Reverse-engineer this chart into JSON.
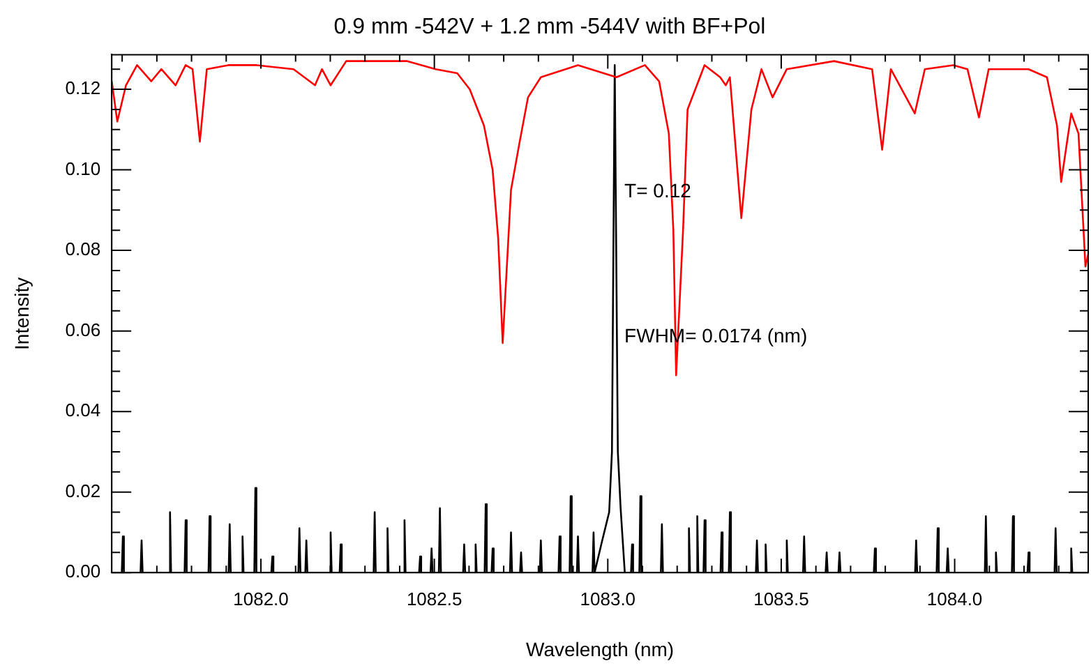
{
  "chart_data": {
    "type": "line",
    "title": "0.9 mm -542V + 1.2 mm -544V with BF+Pol",
    "xlabel": "Wavelength (nm)",
    "ylabel": "Intensity",
    "marker": "none",
    "xlim": [
      1081.57,
      1084.385
    ],
    "ylim": [
      0,
      0.1286
    ],
    "xticks": [
      {
        "value": 1082,
        "label": "1082.0"
      },
      {
        "value": 1082.5,
        "label": "1082.5"
      },
      {
        "value": 1083,
        "label": "1083.0"
      },
      {
        "value": 1083.5,
        "label": "1083.5"
      },
      {
        "value": 1084,
        "label": "1084.0"
      }
    ],
    "yticks": [
      {
        "value": 0,
        "label": "0.00"
      },
      {
        "value": 0.02,
        "label": "0.02"
      },
      {
        "value": 0.04,
        "label": "0.04"
      },
      {
        "value": 0.06,
        "label": "0.06"
      },
      {
        "value": 0.08,
        "label": "0.08"
      },
      {
        "value": 0.1,
        "label": "0.10"
      },
      {
        "value": 0.12,
        "label": "0.12"
      }
    ],
    "annotations": [
      "T= 0.12",
      "FWHM= 0.0174 (nm)"
    ],
    "series": [
      {
        "color": "#ff0000",
        "x": [
          1081.57,
          1081.586,
          1081.611,
          1081.643,
          1081.684,
          1081.713,
          1081.754,
          1081.783,
          1081.803,
          1081.824,
          1081.844,
          1081.906,
          1081.988,
          1082.094,
          1082.156,
          1082.176,
          1082.201,
          1082.246,
          1082.422,
          1082.504,
          1082.566,
          1082.602,
          1082.643,
          1082.668,
          1082.684,
          1082.697,
          1082.721,
          1082.746,
          1082.77,
          1082.807,
          1082.914,
          1083.025,
          1083.107,
          1083.148,
          1083.176,
          1083.189,
          1083.197,
          1083.217,
          1083.23,
          1083.279,
          1083.324,
          1083.34,
          1083.352,
          1083.385,
          1083.414,
          1083.443,
          1083.475,
          1083.516,
          1083.652,
          1083.762,
          1083.791,
          1083.816,
          1083.885,
          1083.914,
          1083.996,
          1084.037,
          1084.07,
          1084.098,
          1084.213,
          1084.266,
          1084.295,
          1084.307,
          1084.336,
          1084.357,
          1084.377,
          1084.385
        ],
        "values": [
          0.122,
          0.112,
          0.121,
          0.126,
          0.122,
          0.125,
          0.121,
          0.126,
          0.125,
          0.107,
          0.125,
          0.126,
          0.126,
          0.125,
          0.121,
          0.125,
          0.121,
          0.127,
          0.127,
          0.125,
          0.124,
          0.12,
          0.111,
          0.1,
          0.083,
          0.057,
          0.095,
          0.107,
          0.118,
          0.123,
          0.126,
          0.123,
          0.126,
          0.122,
          0.109,
          0.085,
          0.049,
          0.085,
          0.115,
          0.126,
          0.123,
          0.121,
          0.123,
          0.088,
          0.115,
          0.125,
          0.118,
          0.125,
          0.127,
          0.125,
          0.105,
          0.125,
          0.114,
          0.125,
          0.126,
          0.125,
          0.113,
          0.125,
          0.125,
          0.123,
          0.111,
          0.097,
          0.114,
          0.109,
          0.076,
          0.079
        ]
      },
      {
        "color": "#000000",
        "x": [
          1081.57,
          1081.599,
          1081.602,
          1081.605,
          1081.653,
          1081.656,
          1081.659,
          1081.735,
          1081.738,
          1081.741,
          1081.78,
          1081.783,
          1081.786,
          1081.849,
          1081.852,
          1081.855,
          1081.907,
          1081.91,
          1081.913,
          1081.944,
          1081.947,
          1081.95,
          1081.981,
          1081.984,
          1081.987,
          1082.03,
          1082.033,
          1082.036,
          1082.108,
          1082.111,
          1082.114,
          1082.128,
          1082.131,
          1082.134,
          1082.198,
          1082.201,
          1082.204,
          1082.227,
          1082.23,
          1082.233,
          1082.325,
          1082.328,
          1082.331,
          1082.362,
          1082.365,
          1082.368,
          1082.411,
          1082.414,
          1082.417,
          1082.456,
          1082.459,
          1082.462,
          1082.489,
          1082.492,
          1082.495,
          1082.513,
          1082.516,
          1082.519,
          1082.583,
          1082.586,
          1082.589,
          1082.616,
          1082.619,
          1082.622,
          1082.645,
          1082.648,
          1082.651,
          1082.665,
          1082.668,
          1082.671,
          1082.718,
          1082.721,
          1082.724,
          1082.747,
          1082.75,
          1082.753,
          1082.804,
          1082.807,
          1082.81,
          1082.858,
          1082.861,
          1082.864,
          1082.89,
          1082.893,
          1082.896,
          1082.911,
          1082.914,
          1082.917,
          1082.956,
          1082.959,
          1082.962,
          1082.984,
          1083.004,
          1083.012,
          1083.02,
          1083.029,
          1083.037,
          1083.049,
          1083.067,
          1083.07,
          1083.073,
          1083.091,
          1083.094,
          1083.097,
          1083.153,
          1083.156,
          1083.159,
          1083.231,
          1083.234,
          1083.237,
          1083.255,
          1083.258,
          1083.261,
          1083.276,
          1083.279,
          1083.282,
          1083.325,
          1083.328,
          1083.331,
          1083.349,
          1083.352,
          1083.355,
          1083.427,
          1083.43,
          1083.433,
          1083.452,
          1083.455,
          1083.458,
          1083.513,
          1083.516,
          1083.519,
          1083.563,
          1083.566,
          1083.569,
          1083.628,
          1083.631,
          1083.634,
          1083.665,
          1083.668,
          1083.671,
          1083.767,
          1083.77,
          1083.773,
          1083.886,
          1083.889,
          1083.892,
          1083.948,
          1083.951,
          1083.954,
          1083.977,
          1083.98,
          1083.983,
          1084.087,
          1084.09,
          1084.093,
          1084.116,
          1084.119,
          1084.122,
          1084.165,
          1084.168,
          1084.171,
          1084.21,
          1084.213,
          1084.216,
          1084.288,
          1084.291,
          1084.294,
          1084.333,
          1084.336,
          1084.339,
          1084.385
        ],
        "values": [
          0,
          0,
          0.009,
          0,
          0,
          0.008,
          0,
          0,
          0.015,
          0,
          0,
          0.013,
          0,
          0,
          0.014,
          0,
          0,
          0.012,
          0,
          0,
          0.009,
          0,
          0,
          0.021,
          0,
          0,
          0.004,
          0,
          0,
          0.011,
          0,
          0,
          0.008,
          0,
          0,
          0.01,
          0,
          0,
          0.007,
          0,
          0,
          0.015,
          0,
          0,
          0.011,
          0,
          0,
          0.013,
          0,
          0,
          0.004,
          0,
          0,
          0.006,
          0,
          0,
          0.016,
          0,
          0,
          0.007,
          0,
          0,
          0.007,
          0,
          0,
          0.017,
          0,
          0,
          0.006,
          0,
          0,
          0.01,
          0,
          0,
          0.005,
          0,
          0,
          0.008,
          0,
          0,
          0.009,
          0,
          0,
          0.019,
          0,
          0,
          0.009,
          0,
          0,
          0.01,
          0,
          0.008,
          0.015,
          0.03,
          0.126,
          0.03,
          0.016,
          0,
          0,
          0.007,
          0,
          0,
          0.019,
          0,
          0,
          0.012,
          0,
          0,
          0.011,
          0,
          0,
          0.014,
          0,
          0,
          0.013,
          0,
          0,
          0.01,
          0,
          0,
          0.015,
          0,
          0,
          0.008,
          0,
          0,
          0.007,
          0,
          0,
          0.008,
          0,
          0,
          0.009,
          0,
          0,
          0.005,
          0,
          0,
          0.005,
          0,
          0,
          0.006,
          0,
          0,
          0.008,
          0,
          0,
          0.011,
          0,
          0,
          0.006,
          0,
          0,
          0.014,
          0,
          0,
          0.005,
          0,
          0,
          0.014,
          0,
          0,
          0.005,
          0,
          0,
          0.011,
          0,
          0,
          0.006,
          0,
          0
        ]
      }
    ]
  }
}
